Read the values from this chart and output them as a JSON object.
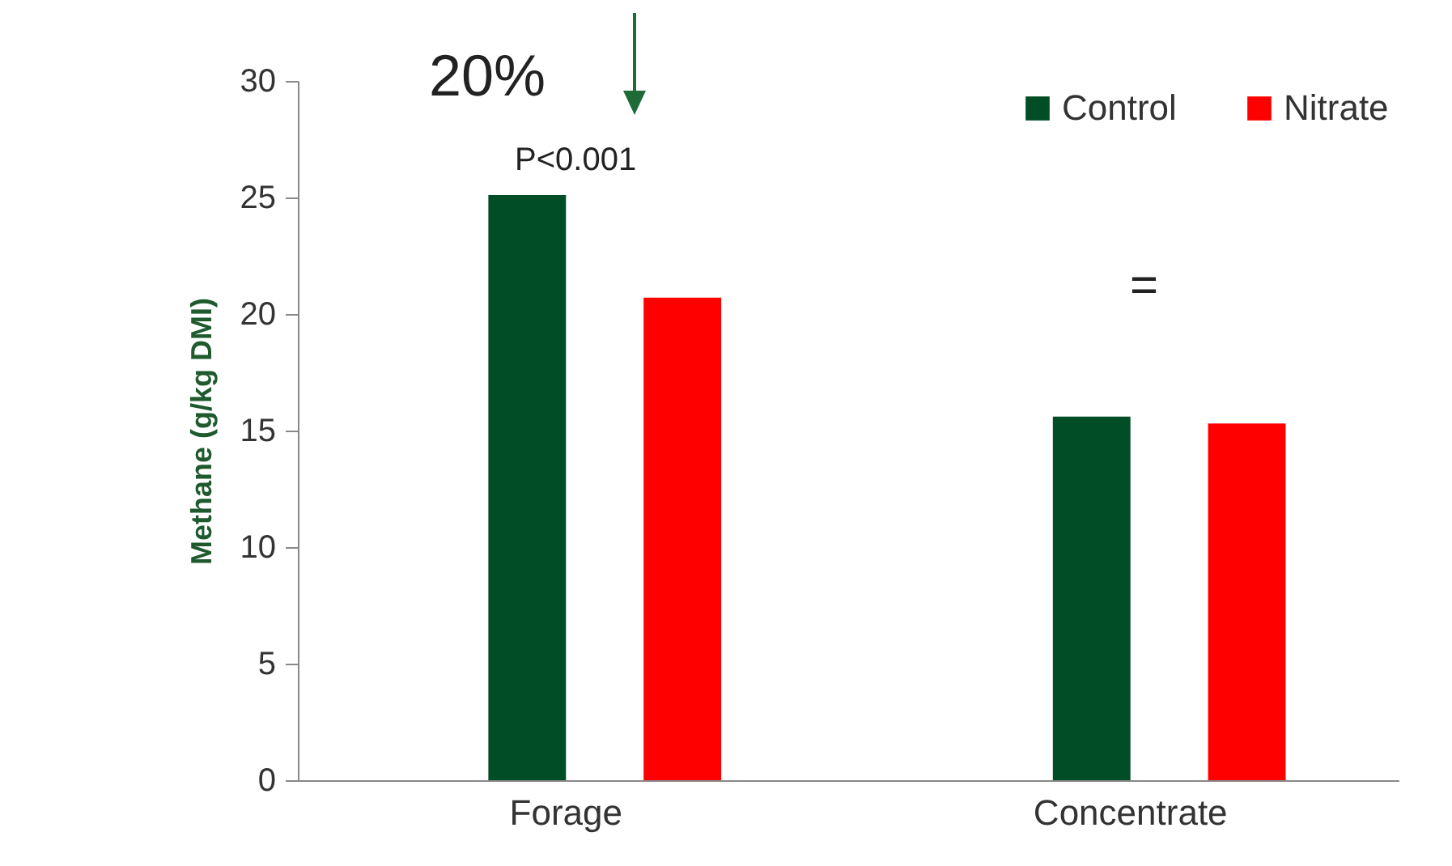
{
  "chart_data": {
    "type": "bar",
    "ylabel": "Methane (g/kg DMI)",
    "categories": [
      "Forage",
      "Concentrate"
    ],
    "series": [
      {
        "name": "Control",
        "color": "#004d26",
        "values": [
          25.1,
          15.6
        ]
      },
      {
        "name": "Nitrate",
        "color": "#ff0000",
        "values": [
          20.7,
          15.3
        ]
      }
    ],
    "ylim": [
      0,
      30
    ],
    "yticks": [
      0,
      5,
      10,
      15,
      20,
      25,
      30
    ],
    "grid": false,
    "legend": "top right",
    "annotations": [
      "20%",
      "P<0.001",
      "="
    ]
  }
}
